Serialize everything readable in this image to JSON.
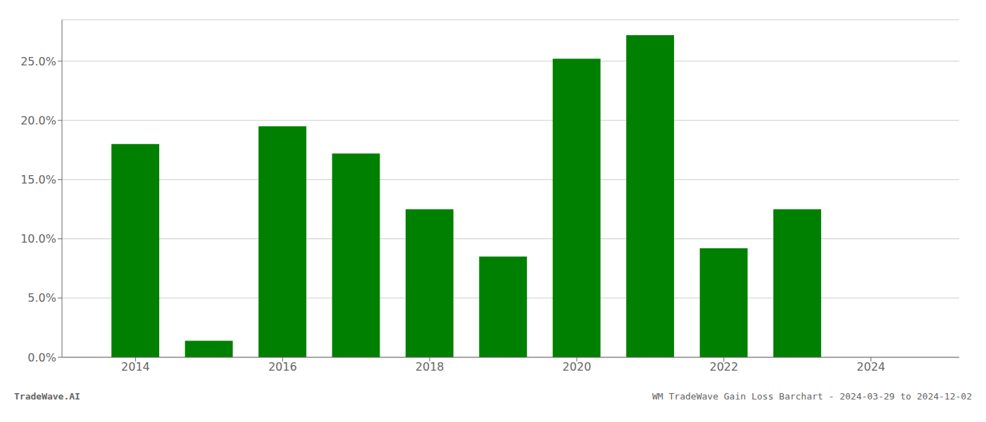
{
  "chart_data": {
    "type": "bar",
    "x": [
      2014,
      2015,
      2016,
      2017,
      2018,
      2019,
      2020,
      2021,
      2022,
      2023
    ],
    "values": [
      0.18,
      0.014,
      0.195,
      0.172,
      0.125,
      0.085,
      0.252,
      0.272,
      0.092,
      0.125
    ],
    "color": "#008000",
    "xlim": [
      2013.0,
      2025.2
    ],
    "xticks": [
      2014,
      2016,
      2018,
      2020,
      2022,
      2024
    ],
    "ylim": [
      0,
      0.285
    ],
    "yticks": [
      {
        "value": 0.0,
        "label": "0.0%"
      },
      {
        "value": 0.05,
        "label": "5.0%"
      },
      {
        "value": 0.1,
        "label": "10.0%"
      },
      {
        "value": 0.15,
        "label": "15.0%"
      },
      {
        "value": 0.2,
        "label": "20.0%"
      },
      {
        "value": 0.25,
        "label": "25.0%"
      }
    ],
    "grid": true,
    "annotations": [
      "TradeWave.AI",
      "WM TradeWave Gain Loss Barchart - 2024-03-29 to 2024-12-02"
    ]
  }
}
